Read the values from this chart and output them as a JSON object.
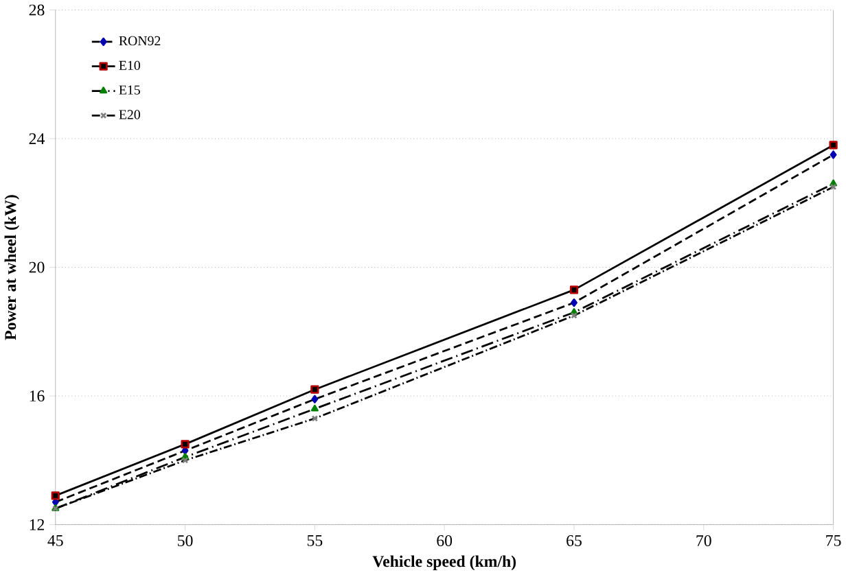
{
  "chart_data": {
    "type": "line",
    "xlabel": "Vehicle speed (km/h)",
    "ylabel": "Power at wheel (kW)",
    "xlim": [
      45,
      75
    ],
    "xticks": [
      45,
      50,
      55,
      60,
      65,
      70,
      75
    ],
    "ylim": [
      12,
      28
    ],
    "yticks": [
      12,
      16,
      20,
      24,
      28
    ],
    "grid": "y",
    "legend": "top left",
    "x": [
      45,
      50,
      55,
      65,
      75
    ],
    "series": [
      {
        "name": "RON92",
        "color": "#000000",
        "marker": "diamond",
        "line_style": "dashed",
        "values": [
          12.7,
          14.3,
          15.9,
          18.9,
          23.5
        ]
      },
      {
        "name": "E10",
        "color": "#000000",
        "marker": "square",
        "line_style": "solid",
        "values": [
          12.9,
          14.5,
          16.2,
          19.3,
          23.8
        ]
      },
      {
        "name": "E15",
        "color": "#000000",
        "marker": "triangle",
        "line_style": "dashed",
        "values": [
          12.5,
          14.1,
          15.6,
          18.6,
          22.6
        ]
      },
      {
        "name": "E20",
        "color": "#000000",
        "marker": "cross",
        "line_style": "dotted",
        "values": [
          12.5,
          14.0,
          15.3,
          18.5,
          22.5
        ]
      }
    ]
  }
}
